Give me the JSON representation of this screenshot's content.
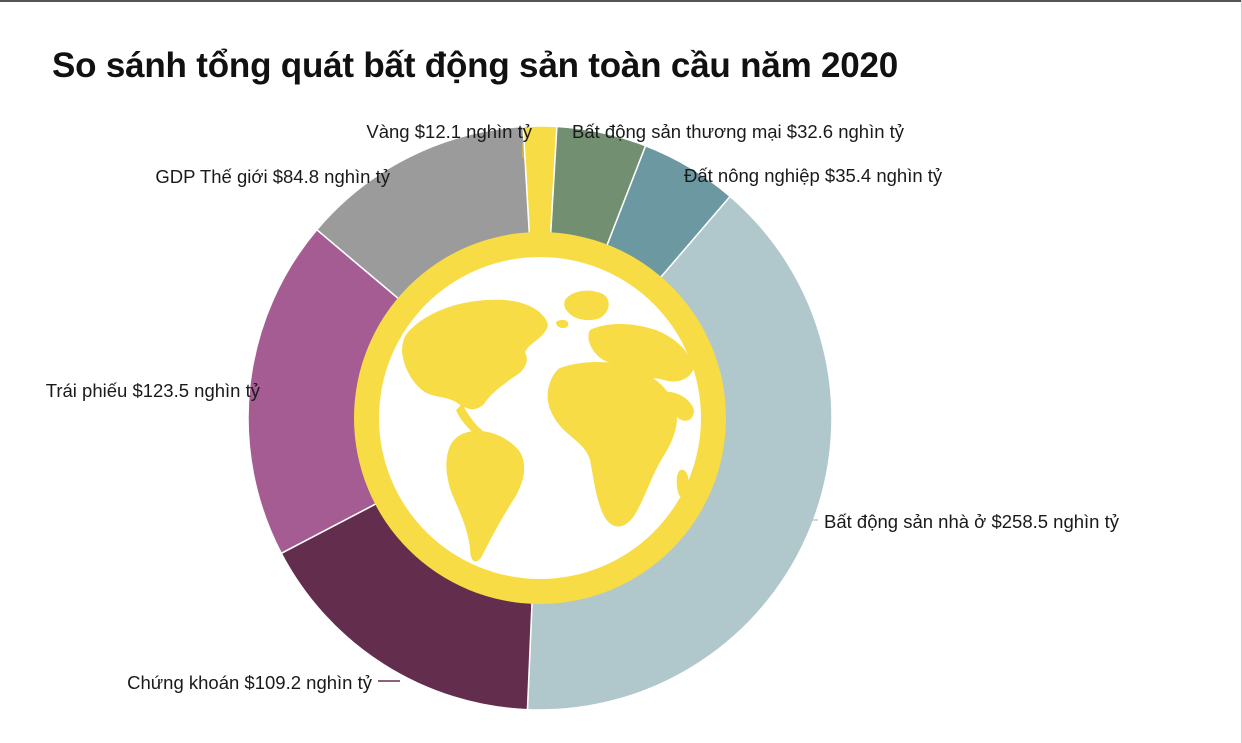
{
  "chart_data": {
    "type": "pie",
    "title": "So sánh tổng quát bất động sản toàn cầu năm 2020",
    "unit": "nghìn tỷ USD",
    "slices": [
      {
        "label": "Vàng $12.1 nghìn tỷ",
        "name": "Vàng",
        "value": 12.1,
        "color": "#f7dc45"
      },
      {
        "label": "Bất động sản thương mại $32.6 nghìn tỷ",
        "name": "Bất động sản thương mại",
        "value": 32.6,
        "color": "#728f72"
      },
      {
        "label": "Đất nông nghiệp $35.4 nghìn tỷ",
        "name": "Đất nông nghiệp",
        "value": 35.4,
        "color": "#6c98a1"
      },
      {
        "label": "Bất động sản nhà ở $258.5 nghìn tỷ",
        "name": "Bất động sản nhà ở",
        "value": 258.5,
        "color": "#b0c7cc"
      },
      {
        "label": "Chứng khoán $109.2 nghìn tỷ",
        "name": "Chứng khoán",
        "value": 109.2,
        "color": "#632e4d"
      },
      {
        "label": "Trái phiếu $123.5 nghìn tỷ",
        "name": "Trái phiếu",
        "value": 123.5,
        "color": "#a45c93"
      },
      {
        "label": "GDP Thế giới $84.8 nghìn tỷ",
        "name": "GDP Thế giới",
        "value": 84.8,
        "color": "#9b9b9b"
      }
    ],
    "center_ring_color": "#f7dc45",
    "center_icon": "globe-icon",
    "legend": "none"
  }
}
